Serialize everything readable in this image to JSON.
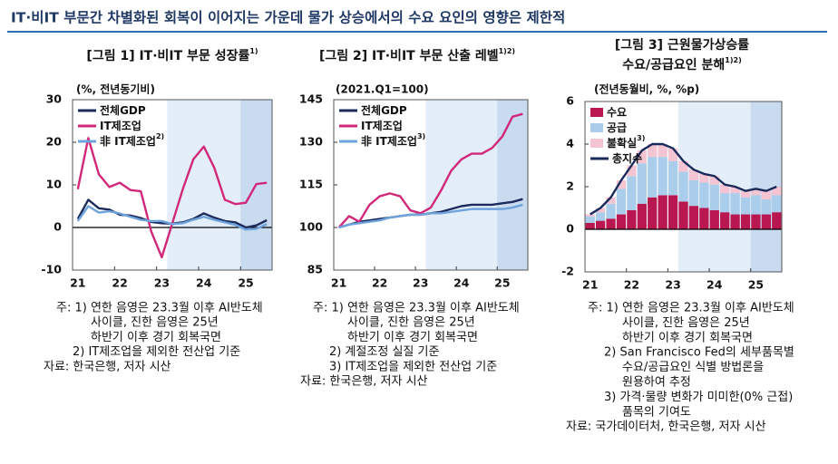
{
  "header": {
    "title": "IT·비IT 부문간 차별화된 회복이 이어지는 가운데 물가 상승에서의 수요 요인의 영향은 제한적"
  },
  "chart_data": [
    {
      "type": "line",
      "title": "[그림 1] IT·비IT 부문 성장률",
      "title_note": "1)",
      "unit": "(%, 전년동기비)",
      "categories": [
        "21",
        null,
        null,
        null,
        "22",
        null,
        null,
        null,
        "23",
        null,
        null,
        null,
        "24",
        null,
        null,
        null,
        "25",
        null,
        null
      ],
      "ylim": [
        -10,
        30
      ],
      "yticks": [
        -10,
        0,
        10,
        20,
        30
      ],
      "shaded_periods": [
        {
          "from": 9,
          "to": 18,
          "color": "#e4eef9"
        },
        {
          "from": 16,
          "to": 18,
          "color": "#c8dbef"
        }
      ],
      "series": [
        {
          "name": "전체GDP",
          "color": "#1c2b5c",
          "values": [
            2,
            6.5,
            4.5,
            4.2,
            3,
            2.8,
            2.2,
            1.3,
            1,
            0.9,
            1.2,
            2,
            3.3,
            2.3,
            1.5,
            1.2,
            0,
            0.5,
            1.7
          ]
        },
        {
          "name": "IT제조업",
          "color": "#d1287a",
          "values": [
            9,
            21,
            12.5,
            9.5,
            10.5,
            8.8,
            8.5,
            -1,
            -7,
            1,
            9,
            16,
            19,
            14,
            6.5,
            5.5,
            5.8,
            10.2,
            10.5
          ]
        },
        {
          "name": "非 IT제조업",
          "note_ref": "2)",
          "color": "#6fa3dc",
          "values": [
            1.5,
            5,
            3.5,
            3.8,
            3.3,
            2.5,
            1.8,
            1.5,
            1.5,
            0.8,
            1,
            1.8,
            2.5,
            1.8,
            1.2,
            0.6,
            -0.5,
            -0.3,
            0.8
          ]
        }
      ],
      "notes": [
        "주: 1) 연한 음영은 23.3월 이후 AI반도체",
        "사이클, 진한 음영은 25년",
        "하반기 이후 경기 회복국면",
        "2) IT제조업을 제외한 전산업 기준",
        "자료: 한국은행, 저자 시산"
      ]
    },
    {
      "type": "line",
      "title": "[그림 2] IT·비IT 부문 산출 레벨",
      "title_note": "1)2)",
      "unit": "(2021.Q1=100)",
      "categories": [
        "21",
        null,
        null,
        null,
        "22",
        null,
        null,
        null,
        "23",
        null,
        null,
        null,
        "24",
        null,
        null,
        null,
        "25",
        null,
        null
      ],
      "ylim": [
        85,
        145
      ],
      "yticks": [
        85,
        100,
        115,
        130,
        145
      ],
      "shaded_periods": [
        {
          "from": 9,
          "to": 18,
          "color": "#e4eef9"
        },
        {
          "from": 16,
          "to": 18,
          "color": "#c8dbef"
        }
      ],
      "series": [
        {
          "name": "전체GDP",
          "color": "#1c2b5c",
          "values": [
            100,
            101,
            102,
            102.5,
            103,
            103.5,
            104,
            104.5,
            104.5,
            105,
            105.5,
            106.5,
            107.5,
            108,
            108,
            108,
            108.5,
            109,
            110
          ]
        },
        {
          "name": "IT제조업",
          "color": "#d1287a",
          "values": [
            100,
            104,
            102,
            108,
            111,
            112,
            111,
            106,
            105,
            107,
            113,
            120,
            124,
            126,
            126,
            128,
            132,
            139,
            140
          ]
        },
        {
          "name": "非 IT제조업",
          "note_ref": "3)",
          "color": "#6fa3dc",
          "values": [
            100,
            101,
            101.5,
            102,
            102.5,
            103.5,
            104,
            104.5,
            104.5,
            105,
            105,
            105.5,
            106,
            106.5,
            106.5,
            106.5,
            106.5,
            107,
            108
          ]
        }
      ],
      "notes": [
        "주: 1) 연한 음영은 23.3월 이후 AI반도체",
        "사이클, 진한 음영은 25년",
        "하반기 이후 경기 회복국면",
        "2) 계절조정 실질 기준",
        "3) IT제조업을 제외한 전산업 기준",
        "자료: 한국은행, 저자 시산"
      ]
    },
    {
      "type": "bar",
      "stacked": true,
      "title": "[그림 3] 근원물가상승률",
      "subtitle": "수요/공급요인 분해",
      "title_note": "1)2)",
      "unit": "(전년동월비, %, %p)",
      "categories": [
        "21",
        null,
        null,
        null,
        "22",
        null,
        null,
        null,
        "23",
        null,
        null,
        null,
        "24",
        null,
        null,
        null,
        "25",
        null,
        null
      ],
      "ylim": [
        -2,
        6
      ],
      "yticks": [
        -2,
        0,
        2,
        4,
        6
      ],
      "shaded_periods": [
        {
          "from": 9,
          "to": 18,
          "color": "#e4eef9"
        },
        {
          "from": 16,
          "to": 18,
          "color": "#c8dbef"
        }
      ],
      "series": [
        {
          "name": "수요",
          "color": "#b8174f",
          "values": [
            0.3,
            0.4,
            0.5,
            0.7,
            0.9,
            1.2,
            1.5,
            1.6,
            1.6,
            1.3,
            1.1,
            1.0,
            0.9,
            0.8,
            0.7,
            0.7,
            0.7,
            0.7,
            0.8
          ]
        },
        {
          "name": "공급",
          "color": "#a9cdea",
          "values": [
            0.3,
            0.4,
            0.7,
            1.2,
            1.6,
            1.9,
            1.9,
            1.8,
            1.6,
            1.4,
            1.2,
            1.2,
            1.2,
            0.9,
            1.0,
            0.8,
            0.9,
            0.7,
            0.8
          ]
        },
        {
          "name": "불확실",
          "note_ref": "3)",
          "color": "#f5c4d3",
          "values": [
            0.1,
            0.2,
            0.3,
            0.4,
            0.5,
            0.6,
            0.6,
            0.6,
            0.6,
            0.5,
            0.5,
            0.4,
            0.4,
            0.4,
            0.3,
            0.3,
            0.3,
            0.4,
            0.4
          ]
        },
        {
          "name": "총지수",
          "type": "line",
          "color": "#1a2a5a",
          "values": [
            0.7,
            1.0,
            1.5,
            2.3,
            3.0,
            3.7,
            4.0,
            4.0,
            3.8,
            3.2,
            2.8,
            2.6,
            2.5,
            2.1,
            2.0,
            1.8,
            1.9,
            1.8,
            2.0
          ]
        }
      ],
      "notes": [
        "주: 1) 연한 음영은 23.3월 이후 AI반도체",
        "사이클, 진한 음영은 25년",
        "하반기 이후 경기 회복국면",
        "2) San Francisco Fed의 세부품목별",
        "수요/공급요인 식별 방법론을",
        "원용하여 추정",
        "3) 가격·물량 변화가 미미한(0% 근접)",
        "품목의 기여도",
        "자료: 국가데이터처, 한국은행, 저자 시산"
      ]
    }
  ]
}
